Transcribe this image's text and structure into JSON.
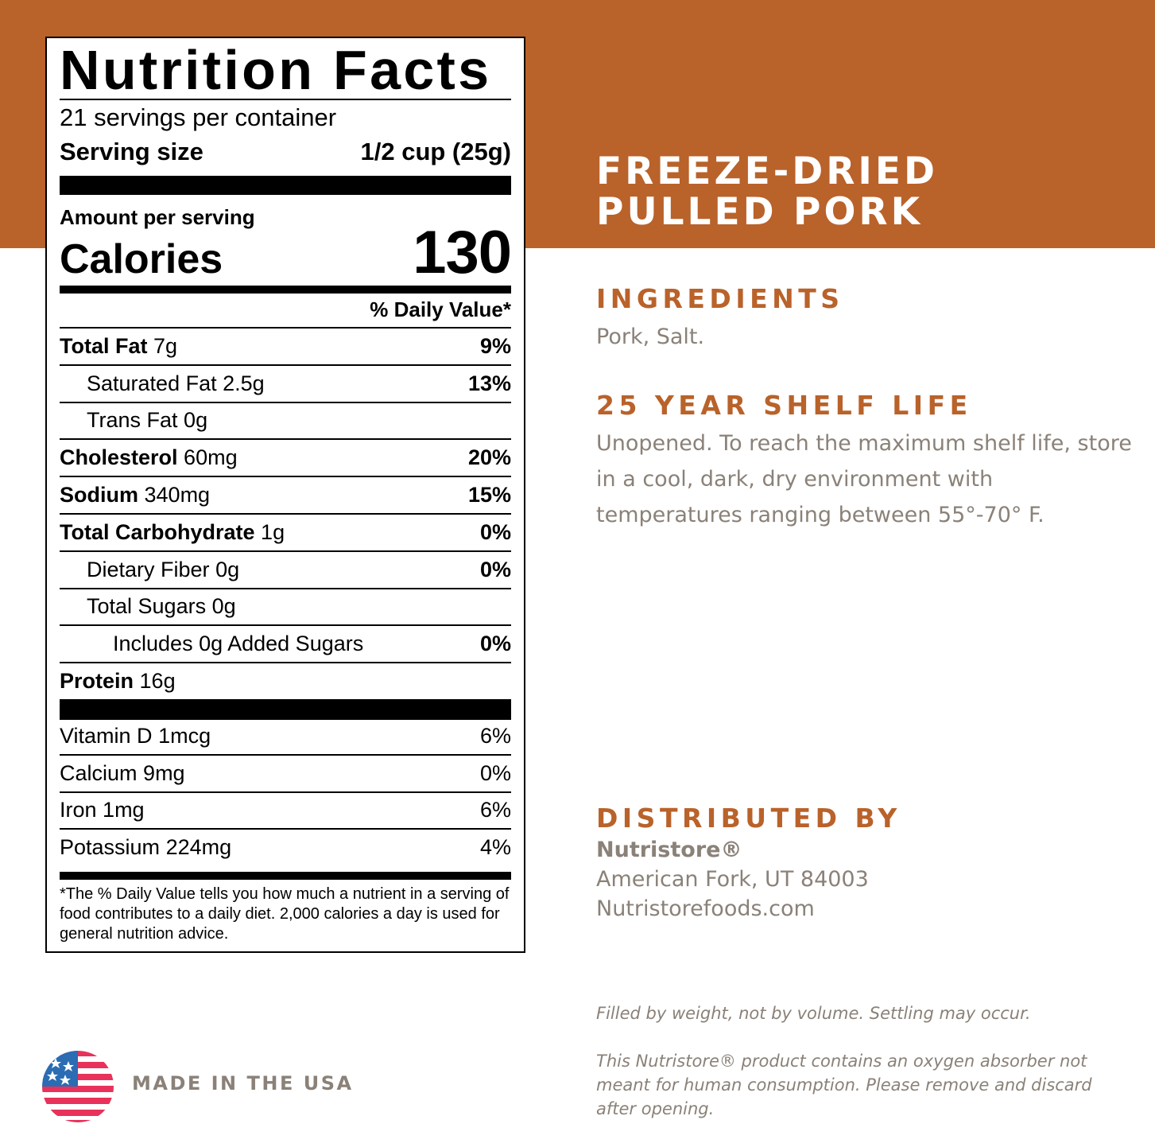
{
  "nutrition_facts": {
    "title": "Nutrition Facts",
    "servings": "21 servings per container",
    "serving_size_label": "Serving size",
    "serving_size": "1/2 cup (25g)",
    "amount_per_serving": "Amount per serving",
    "calories_label": "Calories",
    "calories": 130,
    "daily_value_header": "% Daily Value*",
    "nutrients": [
      {
        "name": "Total Fat",
        "amount": "7g",
        "dv": "9%"
      },
      {
        "name": "Saturated Fat",
        "amount": "2.5g",
        "dv": "13%"
      },
      {
        "name": "Trans Fat",
        "amount": "0g"
      },
      {
        "name": "Cholesterol",
        "amount": "60mg",
        "dv": "20%"
      },
      {
        "name": "Sodium",
        "amount": "340mg",
        "dv": "15%"
      },
      {
        "name": "Total Carbohydrate",
        "amount": "1g",
        "dv": "0%"
      },
      {
        "name": "Dietary Fiber",
        "amount": "0g",
        "dv": "0%"
      },
      {
        "name": "Total Sugars",
        "amount": "0g"
      },
      {
        "name": "Includes 0g Added Sugars",
        "dv": "0%"
      },
      {
        "name": "Protein",
        "amount": "16g"
      }
    ],
    "vitamins": [
      {
        "name": "Vitamin D",
        "amount": "1mcg",
        "dv": "6%"
      },
      {
        "name": "Calcium",
        "amount": "9mg",
        "dv": "0%"
      },
      {
        "name": "Iron",
        "amount": "1mg",
        "dv": "6%"
      },
      {
        "name": "Potassium",
        "amount": "224mg",
        "dv": "4%"
      }
    ],
    "footnote": "*The % Daily Value tells you how much a nutrient in a serving of food contributes to a daily diet. 2,000 calories a day is used for general nutrition advice."
  },
  "product": {
    "title_lines": [
      "FREEZE-DRIED",
      "PULLED PORK"
    ],
    "ingredients_heading": "INGREDIENTS",
    "ingredients": "Pork, Salt.",
    "shelf_life_heading": "25 YEAR SHELF LIFE",
    "shelf_life": "Unopened. To reach the maximum shelf life, store in a cool, dark, dry environment with temperatures ranging between 55°-70° F.",
    "distributor_heading": "DISTRIBUTED BY",
    "distributor_name": "Nutristore®",
    "distributor_address": "American Fork, UT 84003",
    "distributor_website": "Nutristorefoods.com",
    "notes": [
      "Filled by weight, not by volume. Settling may occur.",
      "This Nutristore®  product contains an oxygen absorber not meant for human consumption.  Please remove and discard after opening."
    ],
    "origin": "MADE IN THE USA"
  }
}
